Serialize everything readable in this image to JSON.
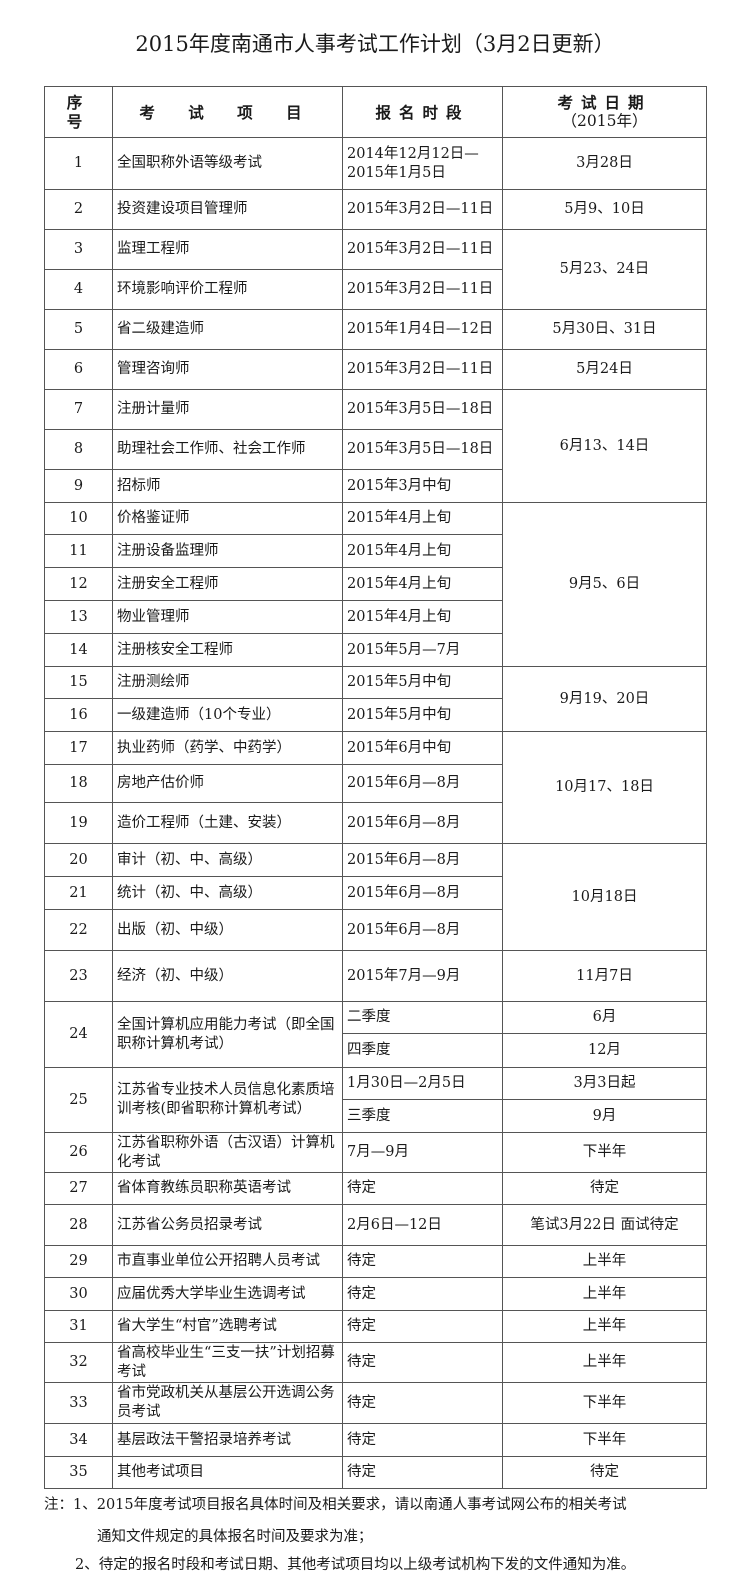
{
  "title": "2015年度南通市人事考试工作计划（3月2日更新）",
  "headers": {
    "no": "序 号",
    "item": "考 试 项 目",
    "period": "报名时段",
    "date": "考试日期",
    "date_sub": "（2015年）"
  },
  "rows": [
    {
      "no": "1",
      "item": "全国职称外语等级考试",
      "period": "2014年12月12日—2015年1月5日",
      "date": "3月28日"
    },
    {
      "no": "2",
      "item": "投资建设项目管理师",
      "period": "2015年3月2日—11日",
      "date": "5月9、10日"
    },
    {
      "no": "3",
      "item": "监理工程师",
      "period": "2015年3月2日—11日",
      "date": "5月23、24日"
    },
    {
      "no": "4",
      "item": "环境影响评价工程师",
      "period": "2015年3月2日—11日"
    },
    {
      "no": "5",
      "item": "省二级建造师",
      "period": "2015年1月4日—12日",
      "date": "5月30日、31日"
    },
    {
      "no": "6",
      "item": "管理咨询师",
      "period": "2015年3月2日—11日",
      "date": "5月24日"
    },
    {
      "no": "7",
      "item": "注册计量师",
      "period": "2015年3月5日—18日",
      "date": "6月13、14日"
    },
    {
      "no": "8",
      "item": "助理社会工作师、社会工作师",
      "period": "2015年3月5日—18日"
    },
    {
      "no": "9",
      "item": "招标师",
      "period": "2015年3月中旬"
    },
    {
      "no": "10",
      "item": "价格鉴证师",
      "period": "2015年4月上旬",
      "date": "9月5、6日"
    },
    {
      "no": "11",
      "item": "注册设备监理师",
      "period": "2015年4月上旬"
    },
    {
      "no": "12",
      "item": "注册安全工程师",
      "period": "2015年4月上旬"
    },
    {
      "no": "13",
      "item": "物业管理师",
      "period": "2015年4月上旬"
    },
    {
      "no": "14",
      "item": "注册核安全工程师",
      "period": "2015年5月—7月"
    },
    {
      "no": "15",
      "item": "注册测绘师",
      "period": "2015年5月中旬",
      "date": "9月19、20日"
    },
    {
      "no": "16",
      "item": "一级建造师（10个专业）",
      "period": "2015年5月中旬"
    },
    {
      "no": "17",
      "item": "执业药师（药学、中药学）",
      "period": "2015年6月中旬",
      "date": "10月17、18日"
    },
    {
      "no": "18",
      "item": "房地产估价师",
      "period": "2015年6月—8月"
    },
    {
      "no": "19",
      "item": "造价工程师（土建、安装）",
      "period": "2015年6月—8月"
    },
    {
      "no": "20",
      "item": "审计（初、中、高级）",
      "period": "2015年6月—8月",
      "date": "10月18日"
    },
    {
      "no": "21",
      "item": "统计（初、中、高级）",
      "period": "2015年6月—8月"
    },
    {
      "no": "22",
      "item": "出版（初、中级）",
      "period": "2015年6月—8月"
    },
    {
      "no": "23",
      "item": "经济（初、中级）",
      "period": "2015年7月—9月",
      "date": "11月7日"
    },
    {
      "no": "24",
      "item": "全国计算机应用能力考试（即全国职称计算机考试）",
      "sub": [
        {
          "period": "二季度",
          "date": "6月"
        },
        {
          "period": "四季度",
          "date": "12月"
        }
      ]
    },
    {
      "no": "25",
      "item": "江苏省专业技术人员信息化素质培训考核(即省职称计算机考试）",
      "sub": [
        {
          "period": "1月30日—2月5日",
          "date": "3月3日起"
        },
        {
          "period": "三季度",
          "date": "9月"
        }
      ]
    },
    {
      "no": "26",
      "item": "江苏省职称外语（古汉语）计算机化考试",
      "period": "7月—9月",
      "date": "下半年"
    },
    {
      "no": "27",
      "item": "省体育教练员职称英语考试",
      "period": "待定",
      "date": "待定"
    },
    {
      "no": "28",
      "item": "江苏省公务员招录考试",
      "period": "2月6日—12日",
      "date": "笔试3月22日 面试待定"
    },
    {
      "no": "29",
      "item": "市直事业单位公开招聘人员考试",
      "period": "待定",
      "date": "上半年"
    },
    {
      "no": "30",
      "item": "应届优秀大学毕业生选调考试",
      "period": "待定",
      "date": "上半年"
    },
    {
      "no": "31",
      "item": "省大学生“村官”选聘考试",
      "period": "待定",
      "date": "上半年"
    },
    {
      "no": "32",
      "item": "省高校毕业生“三支一扶”计划招募考试",
      "period": "待定",
      "date": "上半年"
    },
    {
      "no": "33",
      "item": "省市党政机关从基层公开选调公务员考试",
      "period": "待定",
      "date": "下半年"
    },
    {
      "no": "34",
      "item": "基层政法干警招录培养考试",
      "period": "待定",
      "date": "下半年"
    },
    {
      "no": "35",
      "item": "其他考试项目",
      "period": "待定",
      "date": "待定"
    }
  ],
  "notes": {
    "line1": "注：1、2015年度考试项目报名具体时间及相关要求，请以南通人事考试网公布的相关考试",
    "line2": "通知文件规定的具体报名时间及要求为准；",
    "line3": "2、待定的报名时段和考试日期、其他考试项目均以上级考试机构下发的文件通知为准。"
  }
}
